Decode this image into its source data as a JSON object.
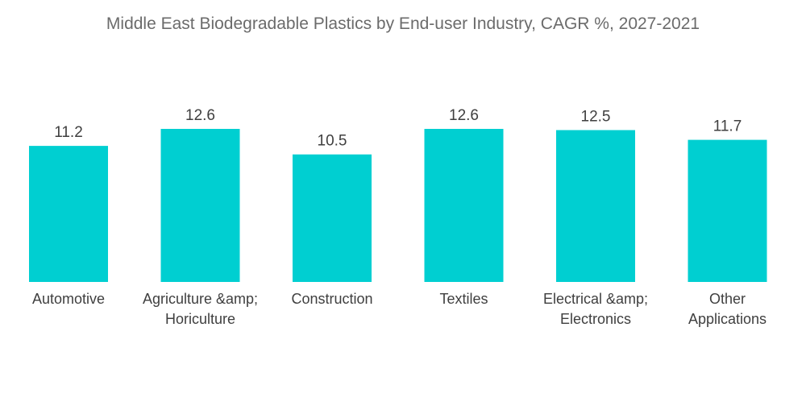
{
  "chart_data": {
    "type": "bar",
    "title": "Middle East Biodegradable Plastics by End-user Industry, CAGR %, 2027-2021",
    "categories": [
      [
        "Automotive"
      ],
      [
        "Agriculture &amp;",
        "Horiculture"
      ],
      [
        "Construction"
      ],
      [
        "Textiles"
      ],
      [
        "Electrical &amp;",
        "Electronics"
      ],
      [
        "Other",
        "Applications"
      ]
    ],
    "values": [
      11.2,
      12.6,
      10.5,
      12.6,
      12.5,
      11.7
    ],
    "value_labels": [
      "11.2",
      "12.6",
      "10.5",
      "12.6",
      "12.5",
      "11.7"
    ],
    "xlabel": "",
    "ylabel": "",
    "ylim": [
      0,
      12.6
    ],
    "grid": false,
    "legend": "none",
    "bar_color": "#00cfd1"
  }
}
